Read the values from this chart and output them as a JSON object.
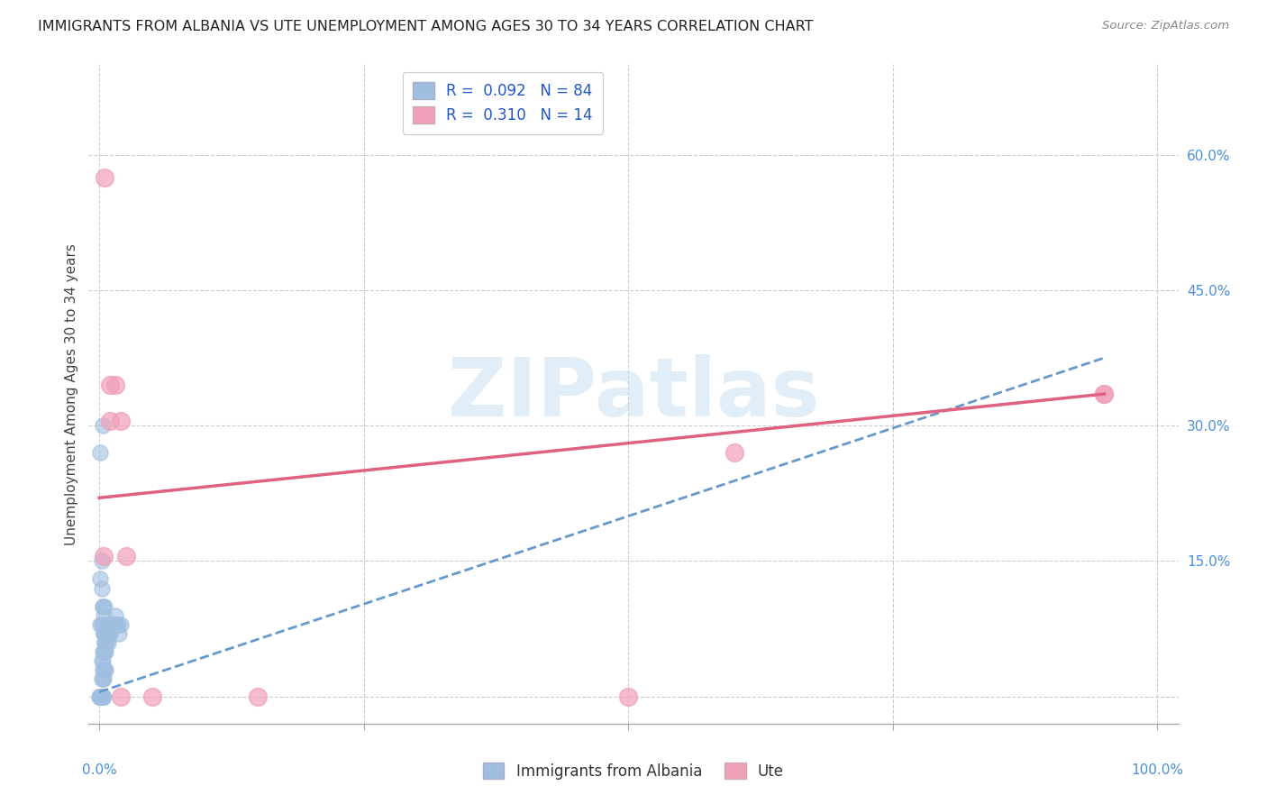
{
  "title": "IMMIGRANTS FROM ALBANIA VS UTE UNEMPLOYMENT AMONG AGES 30 TO 34 YEARS CORRELATION CHART",
  "source": "Source: ZipAtlas.com",
  "ylabel": "Unemployment Among Ages 30 to 34 years",
  "yticks": [
    0.0,
    0.15,
    0.3,
    0.45,
    0.6
  ],
  "ytick_labels": [
    "",
    "15.0%",
    "30.0%",
    "45.0%",
    "60.0%"
  ],
  "xlim": [
    -0.01,
    1.02
  ],
  "ylim": [
    -0.03,
    0.7
  ],
  "watermark": "ZIPatlas",
  "blue_color": "#a0bfe0",
  "pink_color": "#f0a0b8",
  "blue_line_color": "#6699cc",
  "pink_line_color": "#e06080",
  "blue_scatter": [
    [
      0.0,
      0.0
    ],
    [
      0.002,
      0.0
    ],
    [
      0.003,
      0.0
    ],
    [
      0.001,
      0.0
    ],
    [
      0.002,
      0.0
    ],
    [
      0.001,
      0.0
    ],
    [
      0.003,
      0.0
    ],
    [
      0.002,
      0.0
    ],
    [
      0.001,
      0.0
    ],
    [
      0.003,
      0.0
    ],
    [
      0.002,
      0.0
    ],
    [
      0.001,
      0.0
    ],
    [
      0.002,
      0.0
    ],
    [
      0.003,
      0.0
    ],
    [
      0.001,
      0.0
    ],
    [
      0.002,
      0.0
    ],
    [
      0.001,
      0.0
    ],
    [
      0.003,
      0.0
    ],
    [
      0.002,
      0.0
    ],
    [
      0.001,
      0.0
    ],
    [
      0.003,
      0.0
    ],
    [
      0.002,
      0.0
    ],
    [
      0.001,
      0.0
    ],
    [
      0.003,
      0.0
    ],
    [
      0.001,
      0.0
    ],
    [
      0.002,
      0.0
    ],
    [
      0.003,
      0.0
    ],
    [
      0.001,
      0.0
    ],
    [
      0.002,
      0.0
    ],
    [
      0.003,
      0.0
    ],
    [
      0.001,
      0.0
    ],
    [
      0.002,
      0.0
    ],
    [
      0.003,
      0.0
    ],
    [
      0.001,
      0.0
    ],
    [
      0.002,
      0.0
    ],
    [
      0.003,
      0.0
    ],
    [
      0.002,
      0.02
    ],
    [
      0.003,
      0.03
    ],
    [
      0.004,
      0.03
    ],
    [
      0.005,
      0.05
    ],
    [
      0.004,
      0.05
    ],
    [
      0.005,
      0.07
    ],
    [
      0.006,
      0.05
    ],
    [
      0.007,
      0.06
    ],
    [
      0.008,
      0.07
    ],
    [
      0.009,
      0.07
    ],
    [
      0.01,
      0.07
    ],
    [
      0.011,
      0.08
    ],
    [
      0.012,
      0.08
    ],
    [
      0.013,
      0.08
    ],
    [
      0.014,
      0.08
    ],
    [
      0.015,
      0.09
    ],
    [
      0.016,
      0.08
    ],
    [
      0.017,
      0.08
    ],
    [
      0.018,
      0.08
    ],
    [
      0.019,
      0.07
    ],
    [
      0.02,
      0.08
    ],
    [
      0.003,
      0.02
    ],
    [
      0.004,
      0.02
    ],
    [
      0.005,
      0.03
    ],
    [
      0.006,
      0.03
    ],
    [
      0.003,
      0.05
    ],
    [
      0.004,
      0.07
    ],
    [
      0.005,
      0.06
    ],
    [
      0.006,
      0.07
    ],
    [
      0.007,
      0.08
    ],
    [
      0.008,
      0.06
    ],
    [
      0.003,
      0.1
    ],
    [
      0.002,
      0.15
    ],
    [
      0.001,
      0.27
    ],
    [
      0.003,
      0.3
    ],
    [
      0.001,
      0.13
    ],
    [
      0.002,
      0.12
    ],
    [
      0.003,
      0.1
    ],
    [
      0.004,
      0.09
    ],
    [
      0.005,
      0.1
    ],
    [
      0.001,
      0.08
    ],
    [
      0.002,
      0.08
    ],
    [
      0.003,
      0.08
    ],
    [
      0.004,
      0.07
    ],
    [
      0.005,
      0.06
    ],
    [
      0.002,
      0.04
    ],
    [
      0.003,
      0.04
    ]
  ],
  "pink_scatter": [
    [
      0.005,
      0.575
    ],
    [
      0.01,
      0.345
    ],
    [
      0.015,
      0.345
    ],
    [
      0.01,
      0.305
    ],
    [
      0.02,
      0.305
    ],
    [
      0.004,
      0.155
    ],
    [
      0.025,
      0.155
    ],
    [
      0.02,
      0.0
    ],
    [
      0.05,
      0.0
    ],
    [
      0.15,
      0.0
    ],
    [
      0.5,
      0.0
    ],
    [
      0.6,
      0.27
    ],
    [
      0.95,
      0.335
    ],
    [
      0.95,
      0.335
    ]
  ],
  "blue_trend_x": [
    0.0,
    0.95
  ],
  "blue_trend_y": [
    0.005,
    0.375
  ],
  "pink_trend_x": [
    0.0,
    0.95
  ],
  "pink_trend_y": [
    0.22,
    0.335
  ],
  "grid_color": "#cccccc",
  "bg_color": "#ffffff",
  "title_fontsize": 11.5,
  "axis_label_fontsize": 11,
  "tick_fontsize": 11
}
